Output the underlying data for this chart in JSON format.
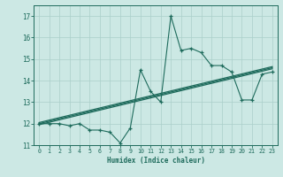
{
  "xlabel": "Humidex (Indice chaleur)",
  "bg_color": "#cce8e4",
  "line_color": "#1e6b5c",
  "grid_color": "#aacfca",
  "x_data": [
    0,
    1,
    2,
    3,
    4,
    5,
    6,
    7,
    8,
    9,
    10,
    11,
    12,
    13,
    14,
    15,
    16,
    17,
    18,
    19,
    20,
    21,
    22,
    23
  ],
  "y_main": [
    12.0,
    12.0,
    12.0,
    11.9,
    12.0,
    11.7,
    11.7,
    11.6,
    11.1,
    11.8,
    14.5,
    13.5,
    13.0,
    17.0,
    15.4,
    15.5,
    15.3,
    14.7,
    14.7,
    14.4,
    13.1,
    13.1,
    14.3,
    14.4
  ],
  "y_reg1_start": 12.0,
  "y_reg1_end": 14.6,
  "y_reg2_start": 12.05,
  "y_reg2_end": 14.65,
  "y_reg3_start": 11.95,
  "y_reg3_end": 14.55,
  "xlim": [
    -0.5,
    23.5
  ],
  "ylim": [
    11.0,
    17.5
  ],
  "yticks": [
    11,
    12,
    13,
    14,
    15,
    16,
    17
  ],
  "xticks": [
    0,
    1,
    2,
    3,
    4,
    5,
    6,
    7,
    8,
    9,
    10,
    11,
    12,
    13,
    14,
    15,
    16,
    17,
    18,
    19,
    20,
    21,
    22,
    23
  ]
}
